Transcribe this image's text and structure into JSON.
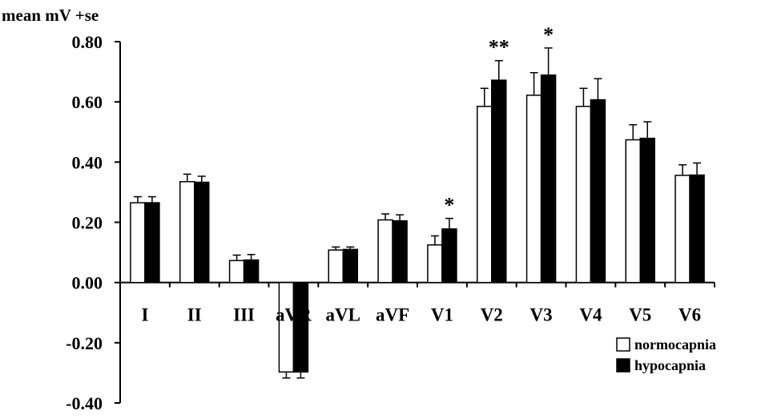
{
  "chart_data": {
    "type": "bar",
    "ylabel": "mean mV +se",
    "ylim": [
      -0.4,
      0.8
    ],
    "yticks": [
      "0.80",
      "0.60",
      "0.40",
      "0.20",
      "0.00",
      "-0.20",
      "-0.40"
    ],
    "categories": [
      "I",
      "II",
      "III",
      "aVR",
      "aVL",
      "aVF",
      "V1",
      "V2",
      "V3",
      "V4",
      "V5",
      "V6"
    ],
    "series": [
      {
        "name": "normocapnia",
        "fill": "#ffffff",
        "values": [
          0.265,
          0.335,
          0.073,
          -0.297,
          0.108,
          0.208,
          0.125,
          0.585,
          0.622,
          0.585,
          0.474,
          0.356
        ],
        "errors": [
          0.02,
          0.025,
          0.018,
          0.02,
          0.01,
          0.02,
          0.03,
          0.06,
          0.075,
          0.06,
          0.05,
          0.035
        ]
      },
      {
        "name": "hypocapnia",
        "fill": "#000000",
        "values": [
          0.265,
          0.333,
          0.075,
          -0.297,
          0.11,
          0.205,
          0.178,
          0.672,
          0.689,
          0.607,
          0.479,
          0.357
        ],
        "errors": [
          0.02,
          0.02,
          0.018,
          0.02,
          0.008,
          0.02,
          0.035,
          0.065,
          0.09,
          0.07,
          0.055,
          0.04
        ]
      }
    ],
    "annotations": [
      {
        "category": "V1",
        "text": "*"
      },
      {
        "category": "V2",
        "text": "**"
      },
      {
        "category": "V3",
        "text": "*"
      }
    ],
    "legend_position": "bottom-right",
    "grid": false
  }
}
